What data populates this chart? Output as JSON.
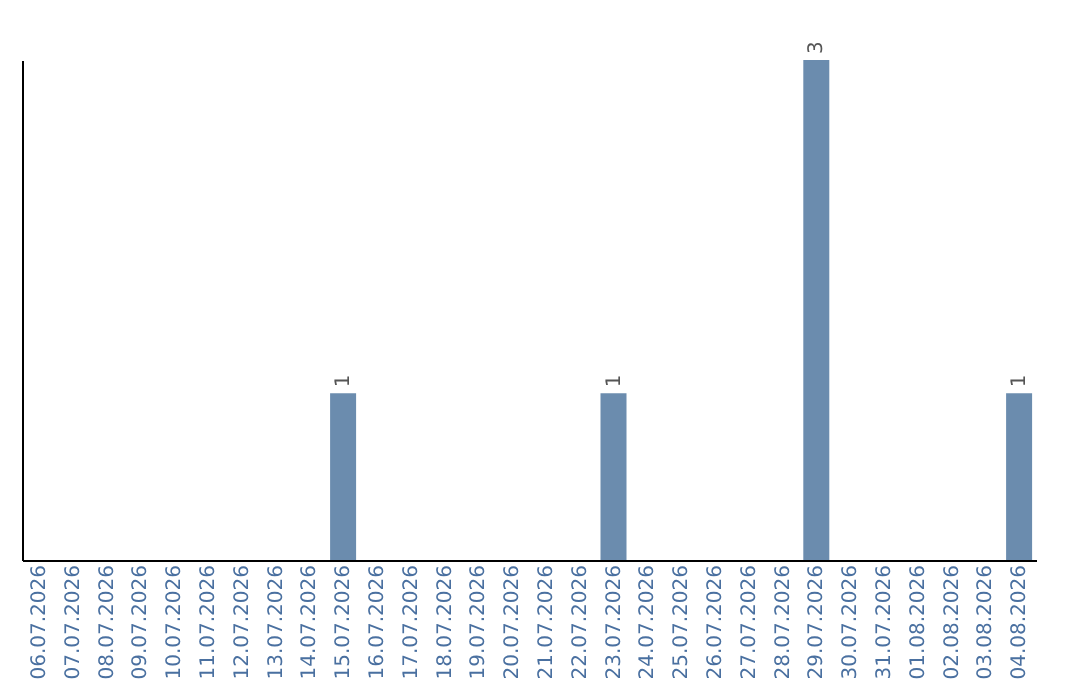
{
  "chart_data": {
    "type": "bar",
    "categories": [
      "06.07.2026",
      "07.07.2026",
      "08.07.2026",
      "09.07.2026",
      "10.07.2026",
      "11.07.2026",
      "12.07.2026",
      "13.07.2026",
      "14.07.2026",
      "15.07.2026",
      "16.07.2026",
      "17.07.2026",
      "18.07.2026",
      "19.07.2026",
      "20.07.2026",
      "21.07.2026",
      "22.07.2026",
      "23.07.2026",
      "24.07.2026",
      "25.07.2026",
      "26.07.2026",
      "27.07.2026",
      "28.07.2026",
      "29.07.2026",
      "30.07.2026",
      "31.07.2026",
      "01.08.2026",
      "02.08.2026",
      "03.08.2026",
      "04.08.2026"
    ],
    "values": [
      0,
      0,
      0,
      0,
      0,
      0,
      0,
      0,
      0,
      1,
      0,
      0,
      0,
      0,
      0,
      0,
      0,
      1,
      0,
      0,
      0,
      0,
      0,
      3,
      0,
      0,
      0,
      0,
      0,
      1
    ],
    "value_labels": [
      null,
      null,
      null,
      null,
      null,
      null,
      null,
      null,
      null,
      "1",
      null,
      null,
      null,
      null,
      null,
      null,
      null,
      "1",
      null,
      null,
      null,
      null,
      null,
      "3",
      null,
      null,
      null,
      null,
      null,
      "1"
    ],
    "color": "#6b8cae",
    "tick_labels": "x"
  }
}
